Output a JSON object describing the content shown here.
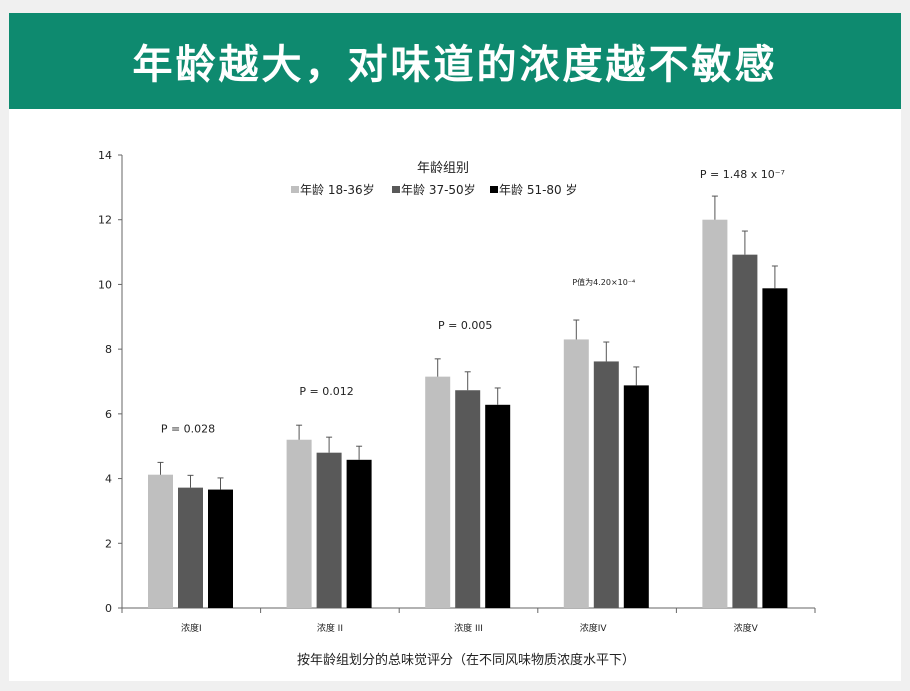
{
  "header": {
    "title": "年龄越大，对味道的浓度越不敏感"
  },
  "chart_data": {
    "type": "bar",
    "title": "",
    "legend_title": "年龄组别",
    "legend_position": "top-center",
    "xlabel": "按年龄组划分的总味觉评分（在不同风味物质浓度水平下）",
    "ylabel": "",
    "ylim": [
      0,
      14
    ],
    "yticks": [
      0,
      2,
      4,
      6,
      8,
      10,
      12,
      14
    ],
    "grid": false,
    "categories": [
      "浓度I",
      "浓度 II",
      "浓度 III",
      "浓度IV",
      "浓度V"
    ],
    "series": [
      {
        "name": "年龄 18-36岁",
        "color": "#bfbfbf",
        "values": [
          4.12,
          5.2,
          7.15,
          8.3,
          12.0
        ],
        "error_upper": [
          4.5,
          5.65,
          7.7,
          8.9,
          12.73
        ]
      },
      {
        "name": "年龄 37-50岁",
        "color": "#595959",
        "values": [
          3.72,
          4.8,
          6.73,
          7.62,
          10.92
        ],
        "error_upper": [
          4.1,
          5.28,
          7.3,
          8.22,
          11.65
        ]
      },
      {
        "name": "年龄 51-80 岁",
        "color": "#000000",
        "values": [
          3.66,
          4.58,
          6.28,
          6.88,
          9.88
        ],
        "error_upper": [
          4.02,
          5.0,
          6.8,
          7.45,
          10.57
        ]
      }
    ],
    "annotations": [
      {
        "category": "浓度I",
        "text": "P = 0.028"
      },
      {
        "category": "浓度 II",
        "text": "P = 0.012"
      },
      {
        "category": "浓度 III",
        "text": "P = 0.005"
      },
      {
        "category": "浓度IV",
        "text": "P值为4.20×10⁻⁴"
      },
      {
        "category": "浓度V",
        "text": "P = 1.48  x 10⁻⁷"
      }
    ]
  }
}
